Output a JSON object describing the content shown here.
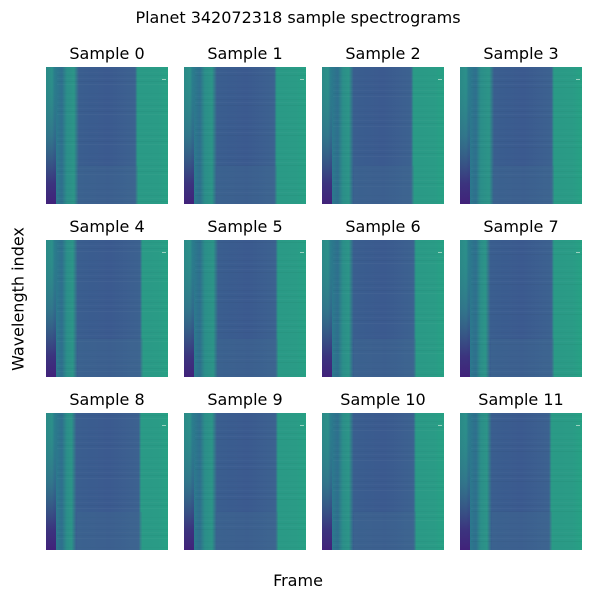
{
  "title": "Planet 342072318 sample spectrograms",
  "xlabel": "Frame",
  "ylabel": "Wavelength index",
  "colors": {
    "colormap": "viridis",
    "out_of_transit": "#2a9b86",
    "in_transit": "#3b5a8f",
    "dark_edge": "#3d2a7d"
  },
  "chart_data": {
    "type": "heatmap",
    "title": "Planet 342072318 sample spectrograms",
    "xlabel": "Frame",
    "ylabel": "Wavelength index",
    "colormap": "viridis",
    "axes_visible": false,
    "grid": false,
    "layout": {
      "rows": 3,
      "cols": 4
    },
    "panels": [
      {
        "title": "Sample 0",
        "ingress": 0.27,
        "egress": 0.75
      },
      {
        "title": "Sample 1",
        "ingress": 0.27,
        "egress": 0.76
      },
      {
        "title": "Sample 2",
        "ingress": 0.26,
        "egress": 0.75
      },
      {
        "title": "Sample 3",
        "ingress": 0.28,
        "egress": 0.77
      },
      {
        "title": "Sample 4",
        "ingress": 0.26,
        "egress": 0.79
      },
      {
        "title": "Sample 5",
        "ingress": 0.28,
        "egress": 0.77
      },
      {
        "title": "Sample 6",
        "ingress": 0.26,
        "egress": 0.77
      },
      {
        "title": "Sample 7",
        "ingress": 0.25,
        "egress": 0.77
      },
      {
        "title": "Sample 8",
        "ingress": 0.25,
        "egress": 0.78
      },
      {
        "title": "Sample 9",
        "ingress": 0.27,
        "egress": 0.77
      },
      {
        "title": "Sample 10",
        "ingress": 0.26,
        "egress": 0.77
      },
      {
        "title": "Sample 11",
        "ingress": 0.26,
        "egress": 0.75
      }
    ]
  }
}
